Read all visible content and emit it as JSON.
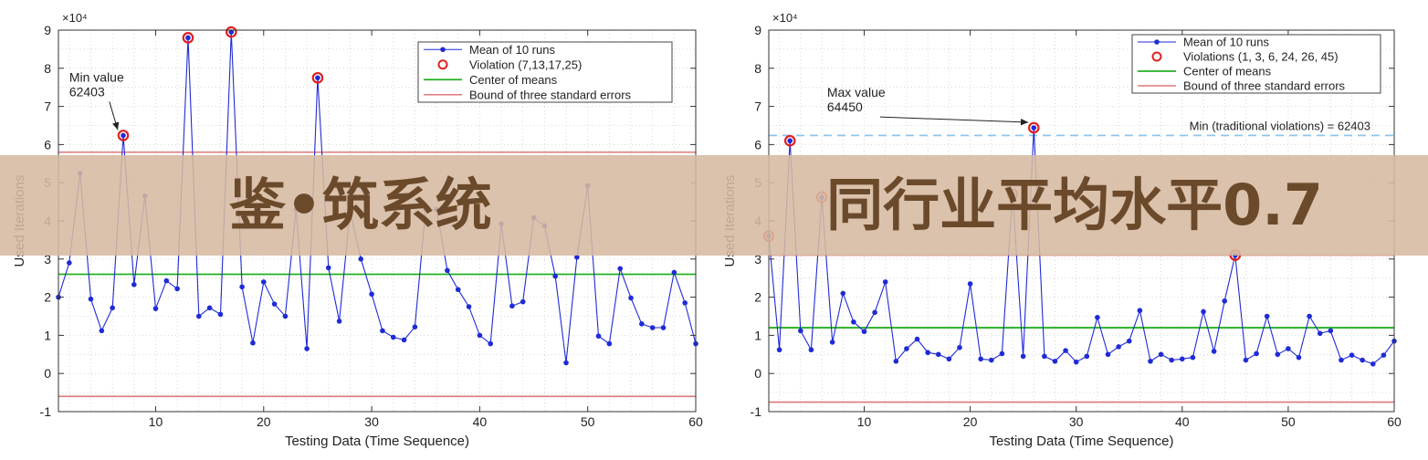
{
  "colors": {
    "series": "#1f2bd6",
    "violation": "#e02020",
    "center": "#22b022",
    "bound": "#e07878",
    "min_line": "#8ec6ec",
    "banner": "#d6b9a0",
    "banner_text": "#6b4a2b"
  },
  "overlay": {
    "left_text": "鉴•筑系统",
    "right_text": "同行业平均水平0.7"
  },
  "chart_data": [
    {
      "type": "line",
      "exponent_label": "×10⁴",
      "xlabel": "Testing Data (Time Sequence)",
      "ylabel": "Used Iterations",
      "xlim": [
        1,
        60
      ],
      "ylim": [
        -1,
        9
      ],
      "xticks": [
        10,
        20,
        30,
        40,
        50,
        60
      ],
      "yticks": [
        -1,
        0,
        1,
        2,
        3,
        4,
        5,
        6,
        7,
        8,
        9
      ],
      "grid": true,
      "legend_position": "top-right",
      "legend": [
        "Mean of 10 runs",
        "Violation (7,13,17,25)",
        "Center of means",
        "Bound of three standard errors"
      ],
      "series": [
        {
          "name": "Mean of 10 runs",
          "x": [
            1,
            2,
            3,
            4,
            5,
            6,
            7,
            8,
            9,
            10,
            11,
            12,
            13,
            14,
            15,
            16,
            17,
            18,
            19,
            20,
            21,
            22,
            23,
            24,
            25,
            26,
            27,
            28,
            29,
            30,
            31,
            32,
            33,
            34,
            35,
            36,
            37,
            38,
            39,
            40,
            41,
            42,
            43,
            44,
            45,
            46,
            47,
            48,
            49,
            50,
            51,
            52,
            53,
            54,
            55,
            56,
            57,
            58,
            59,
            60
          ],
          "values": [
            2.0,
            2.9,
            5.25,
            1.95,
            1.12,
            1.72,
            6.24,
            2.33,
            4.65,
            1.7,
            2.43,
            2.22,
            8.8,
            1.5,
            1.72,
            1.55,
            8.95,
            2.27,
            0.8,
            2.4,
            1.82,
            1.5,
            4.3,
            0.65,
            7.75,
            2.77,
            1.37,
            4.25,
            3.0,
            2.08,
            1.12,
            0.95,
            0.88,
            1.22,
            4.3,
            4.3,
            2.7,
            2.2,
            1.75,
            1.0,
            0.78,
            3.92,
            1.77,
            1.88,
            4.08,
            3.87,
            2.55,
            0.28,
            3.05,
            4.92,
            0.98,
            0.78,
            2.75,
            1.98,
            1.3,
            1.2,
            1.2,
            2.65,
            1.85,
            0.78
          ]
        }
      ],
      "violations": {
        "name": "Violation (7,13,17,25)",
        "x": [
          7,
          13,
          17,
          25
        ]
      },
      "center_of_means": 2.6,
      "bounds": [
        -0.6,
        5.8
      ],
      "annotations": [
        {
          "text_lines": [
            "Min value",
            "62403"
          ],
          "point_x": 7,
          "point_y": 6.24,
          "label_x": 2.0,
          "label_y": 7.65
        }
      ]
    },
    {
      "type": "line",
      "exponent_label": "×10⁴",
      "xlabel": "Testing Data (Time Sequence)",
      "ylabel": "Used Iterations",
      "xlim": [
        1,
        60
      ],
      "ylim": [
        -1,
        9
      ],
      "xticks": [
        10,
        20,
        30,
        40,
        50,
        60
      ],
      "yticks": [
        -1,
        0,
        1,
        2,
        3,
        4,
        5,
        6,
        7,
        8,
        9
      ],
      "grid": true,
      "legend_position": "top-right",
      "legend": [
        "Mean of 10 runs",
        "Violations (1, 3, 6, 24, 26, 45)",
        "Center of means",
        "Bound of three standard errors"
      ],
      "series": [
        {
          "name": "Mean of 10 runs",
          "x": [
            1,
            2,
            3,
            4,
            5,
            6,
            7,
            8,
            9,
            10,
            11,
            12,
            13,
            14,
            15,
            16,
            17,
            18,
            19,
            20,
            21,
            22,
            23,
            24,
            25,
            26,
            27,
            28,
            29,
            30,
            31,
            32,
            33,
            34,
            35,
            36,
            37,
            38,
            39,
            40,
            41,
            42,
            43,
            44,
            45,
            46,
            47,
            48,
            49,
            50,
            51,
            52,
            53,
            54,
            55,
            56,
            57,
            58,
            59,
            60
          ],
          "values": [
            3.6,
            0.62,
            6.1,
            1.12,
            0.62,
            4.62,
            0.82,
            2.1,
            1.35,
            1.1,
            1.6,
            2.4,
            0.32,
            0.65,
            0.9,
            0.55,
            0.5,
            0.38,
            0.68,
            2.35,
            0.38,
            0.35,
            0.52,
            4.7,
            0.45,
            6.44,
            0.45,
            0.32,
            0.6,
            0.3,
            0.45,
            1.47,
            0.5,
            0.7,
            0.85,
            1.65,
            0.32,
            0.5,
            0.35,
            0.38,
            0.42,
            1.62,
            0.58,
            1.9,
            3.1,
            0.35,
            0.52,
            1.5,
            0.5,
            0.65,
            0.42,
            1.5,
            1.05,
            1.12,
            0.35,
            0.48,
            0.35,
            0.25,
            0.48,
            0.85
          ]
        }
      ],
      "violations": {
        "name": "Violations (1, 3, 6, 24, 26, 45)",
        "x": [
          1,
          3,
          6,
          24,
          26,
          45
        ]
      },
      "center_of_means": 1.2,
      "bounds": [
        -0.75,
        3.1
      ],
      "reference_line": {
        "label": "Min (traditional violations) = 62403",
        "value": 6.2403
      },
      "annotations": [
        {
          "text_lines": [
            "Max value",
            "64450"
          ],
          "point_x": 26,
          "point_y": 6.44,
          "label_x": 6.5,
          "label_y": 7.25
        }
      ]
    }
  ]
}
